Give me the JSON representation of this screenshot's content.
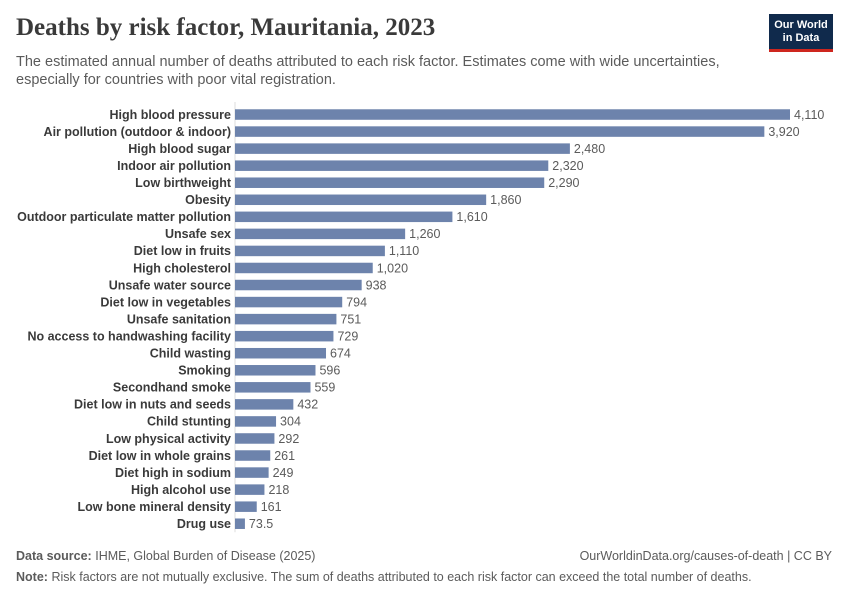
{
  "header": {
    "title": "Deaths by risk factor, Mauritania, 2023",
    "subtitle": "The estimated annual number of deaths attributed to each risk factor. Estimates come with wide uncertainties, especially for countries with poor vital registration.",
    "logo_line1": "Our World",
    "logo_line2": "in Data"
  },
  "footer": {
    "source_label": "Data source:",
    "source_text": "IHME, Global Burden of Disease (2025)",
    "url_text": "OurWorldinData.org/causes-of-death | CC BY",
    "note_label": "Note:",
    "note_text": "Risk factors are not mutually exclusive. The sum of deaths attributed to each risk factor can exceed the total number of deaths."
  },
  "colors": {
    "bar": "#6d83ac",
    "logo_bg": "#102a4c",
    "logo_accent": "#ce261e"
  },
  "chart_data": {
    "type": "bar",
    "orientation": "horizontal",
    "title": "Deaths by risk factor, Mauritania, 2023",
    "xlabel": "",
    "ylabel": "",
    "xlim": [
      0,
      4110
    ],
    "grid": false,
    "categories": [
      "High blood pressure",
      "Air pollution (outdoor & indoor)",
      "High blood sugar",
      "Indoor air pollution",
      "Low birthweight",
      "Obesity",
      "Outdoor particulate matter pollution",
      "Unsafe sex",
      "Diet low in fruits",
      "High cholesterol",
      "Unsafe water source",
      "Diet low in vegetables",
      "Unsafe sanitation",
      "No access to handwashing facility",
      "Child wasting",
      "Smoking",
      "Secondhand smoke",
      "Diet low in nuts and seeds",
      "Child stunting",
      "Low physical activity",
      "Diet low in whole grains",
      "Diet high in sodium",
      "High alcohol use",
      "Low bone mineral density",
      "Drug use"
    ],
    "values": [
      4110,
      3920,
      2480,
      2320,
      2290,
      1860,
      1610,
      1260,
      1110,
      1020,
      938,
      794,
      751,
      729,
      674,
      596,
      559,
      432,
      304,
      292,
      261,
      249,
      218,
      161,
      73.5
    ],
    "value_labels": [
      "4,110",
      "3,920",
      "2,480",
      "2,320",
      "2,290",
      "1,860",
      "1,610",
      "1,260",
      "1,110",
      "1,020",
      "938",
      "794",
      "751",
      "729",
      "674",
      "596",
      "559",
      "432",
      "304",
      "292",
      "261",
      "249",
      "218",
      "161",
      "73.5"
    ]
  }
}
